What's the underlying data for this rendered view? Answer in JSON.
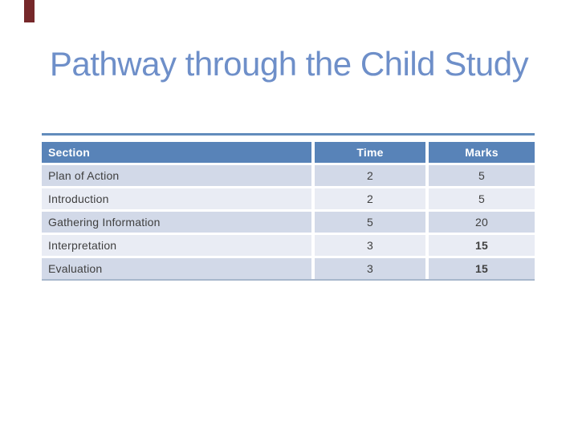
{
  "slide": {
    "title": "Pathway through the Child Study",
    "colors": {
      "title": "#6e8fc9",
      "accent": "#76282a",
      "header_bg": "#5883b8",
      "header_text": "#ffffff",
      "top_line": "#628cbc",
      "bottom_line": "#a8b7cc",
      "row_odd": "#d2d9e8",
      "row_even": "#e9ecf4",
      "body_text": "#3f3f3f"
    }
  },
  "table": {
    "columns": [
      "Section",
      "Time",
      "Marks"
    ],
    "rows": [
      {
        "section": "Plan of Action",
        "time": "2",
        "marks": "5",
        "marks_bold": false
      },
      {
        "section": "Introduction",
        "time": "2",
        "marks": "5",
        "marks_bold": false
      },
      {
        "section": "Gathering Information",
        "time": "5",
        "marks": "20",
        "marks_bold": false
      },
      {
        "section": "Interpretation",
        "time": "3",
        "marks": "15",
        "marks_bold": true
      },
      {
        "section": "Evaluation",
        "time": "3",
        "marks": "15",
        "marks_bold": true
      }
    ]
  }
}
